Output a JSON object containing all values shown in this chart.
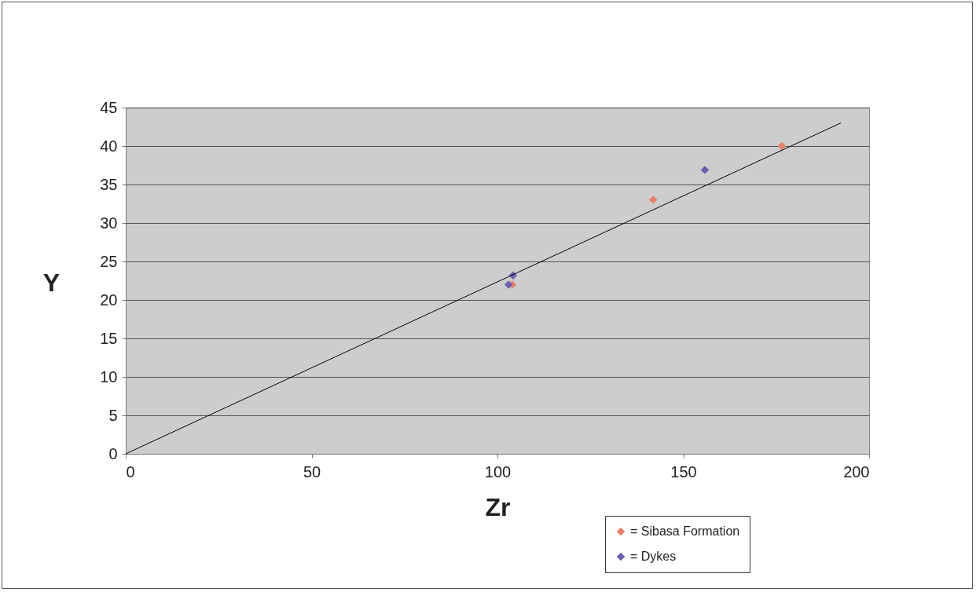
{
  "chart_data": {
    "type": "scatter",
    "xlabel": "Zr",
    "ylabel": "Y",
    "xlim": [
      0,
      200
    ],
    "xticks": [
      0,
      50,
      100,
      150,
      200
    ],
    "ylim": [
      0,
      45
    ],
    "yticks": [
      0,
      5,
      10,
      15,
      20,
      25,
      30,
      35,
      40,
      45
    ],
    "grid": "y",
    "legend": "bottom right",
    "series": [
      {
        "name": "= Sibasa Formation",
        "marker": "diamond",
        "color": "#e8806a",
        "x": [
          104,
          141.9,
          176.5
        ],
        "values": [
          22,
          33,
          40
        ]
      },
      {
        "name": "= Dykes",
        "marker": "diamond",
        "color": "#6a5fb0",
        "x": [
          103,
          104.2,
          155.8
        ],
        "values": [
          22,
          23.2,
          36.9
        ]
      },
      {
        "type": "line",
        "marker": "none",
        "color": "#000000",
        "x": [
          0,
          192.4
        ],
        "values": [
          0,
          43
        ]
      }
    ]
  }
}
